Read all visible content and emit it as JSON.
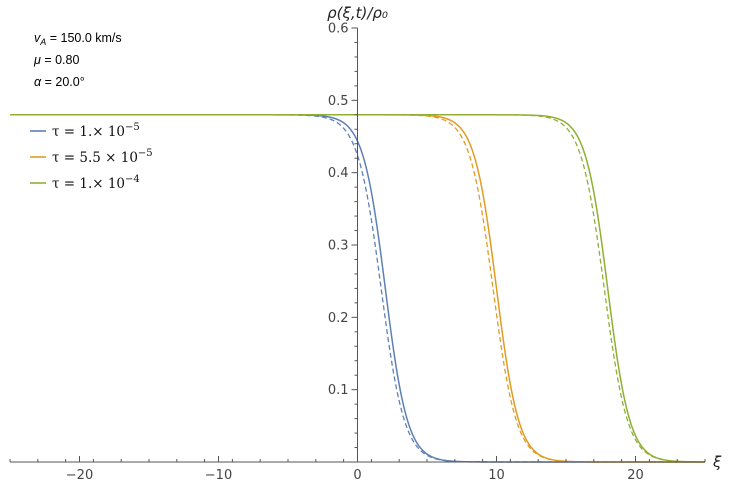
{
  "chart_data": {
    "type": "line",
    "xlabel": "ξ",
    "ylabel": "ρ(ξ,t)/ρ₀",
    "xlim": [
      -25,
      25
    ],
    "ylim": [
      0,
      0.6
    ],
    "x_ticks": [
      -20,
      -10,
      0,
      10,
      20
    ],
    "y_ticks": [
      0.1,
      0.2,
      0.3,
      0.4,
      0.5,
      0.6
    ],
    "x_tick_labels": [
      "−20",
      "−10",
      "0",
      "10",
      "20"
    ],
    "y_tick_labels": [
      "0.1",
      "0.2",
      "0.3",
      "0.4",
      "0.5",
      "0.6"
    ],
    "grid": false,
    "legend_position": "upper-left",
    "parameters": [
      {
        "symbol": "v",
        "subscript": "A",
        "text": " = 150.0 km/s"
      },
      {
        "symbol": "μ",
        "subscript": "",
        "text": " = 0.80"
      },
      {
        "symbol": "α",
        "subscript": "",
        "text": " = 20.0°"
      }
    ],
    "series": [
      {
        "name": "τ = 1.×10⁻⁵",
        "label_main": "τ = 1.× 10",
        "label_exp": "−5",
        "color": "#5E81B5",
        "plateau": 0.48,
        "center": 2.0,
        "width": 0.8,
        "dashed_center": 1.7
      },
      {
        "name": "τ = 5.5×10⁻⁵",
        "label_main": "τ = 5.5 × 10",
        "label_exp": "−5",
        "color": "#E19C24",
        "plateau": 0.48,
        "center": 10.0,
        "width": 0.8,
        "dashed_center": 9.75
      },
      {
        "name": "τ = 1.×10⁻⁴",
        "label_main": "τ = 1.× 10",
        "label_exp": "−4",
        "color": "#8FB032",
        "plateau": 0.48,
        "center": 18.0,
        "width": 0.8,
        "dashed_center": 17.75
      }
    ]
  }
}
